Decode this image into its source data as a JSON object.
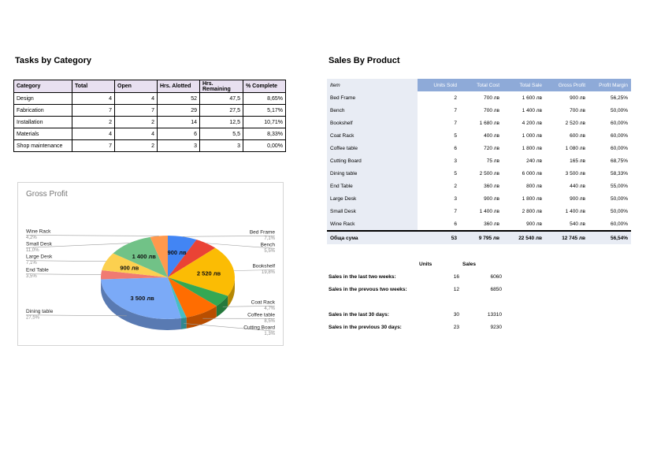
{
  "tasks": {
    "title": "Tasks by Category",
    "headers": [
      "Category",
      "Total",
      "Open",
      "Hrs. Alotted",
      "Hrs. Remaining",
      "% Complete"
    ],
    "rows": [
      [
        "Design",
        "4",
        "4",
        "52",
        "47,5",
        "8,65%"
      ],
      [
        "Fabrication",
        "7",
        "7",
        "29",
        "27,5",
        "5,17%"
      ],
      [
        "Installation",
        "2",
        "2",
        "14",
        "12,5",
        "10,71%"
      ],
      [
        "Materials",
        "4",
        "4",
        "6",
        "5,5",
        "8,33%"
      ],
      [
        "Shop maintenance",
        "7",
        "2",
        "3",
        "3",
        "0,00%"
      ]
    ]
  },
  "chart_data": {
    "type": "pie",
    "title": "Gross Profit",
    "slices": [
      {
        "name": "Bed Frame",
        "value": 900,
        "label": "900 лв",
        "percent": "7,1%",
        "color": "#4285f4"
      },
      {
        "name": "Bench",
        "value": 700,
        "label": "",
        "percent": "5,5%",
        "color": "#ea4335"
      },
      {
        "name": "Bookshelf",
        "value": 2520,
        "label": "2 520 лв",
        "percent": "19,8%",
        "color": "#fbbc04"
      },
      {
        "name": "Coat Rack",
        "value": 600,
        "label": "",
        "percent": "4,7%",
        "color": "#34a853"
      },
      {
        "name": "Coffee table",
        "value": 1080,
        "label": "",
        "percent": "8,5%",
        "color": "#ff6d01"
      },
      {
        "name": "Cutting Board",
        "value": 165,
        "label": "",
        "percent": "1,3%",
        "color": "#46bdc6"
      },
      {
        "name": "Dining table",
        "value": 3500,
        "label": "3 500 лв",
        "percent": "27,5%",
        "color": "#7baaf7"
      },
      {
        "name": "End Table",
        "value": 440,
        "label": "",
        "percent": "3,5%",
        "color": "#f07b72"
      },
      {
        "name": "Large Desk",
        "value": 900,
        "label": "900 лв",
        "percent": "7,1%",
        "color": "#fcd04f"
      },
      {
        "name": "Small Desk",
        "value": 1400,
        "label": "1 400 лв",
        "percent": "11,0%",
        "color": "#71c287"
      },
      {
        "name": "Wine Rack",
        "value": 540,
        "label": "",
        "percent": "4,2%",
        "color": "#ff994d"
      }
    ]
  },
  "sales": {
    "title": "Sales By Product",
    "headers": [
      "Item",
      "Units Sold",
      "Total Cost",
      "Total Sale",
      "Gross Profit",
      "Profit Margin"
    ],
    "rows": [
      [
        "Bed Frame",
        "2",
        "700 лв",
        "1 600 лв",
        "900 лв",
        "56,25%"
      ],
      [
        "Bench",
        "7",
        "700 лв",
        "1 400 лв",
        "700 лв",
        "50,00%"
      ],
      [
        "Bookshelf",
        "7",
        "1 680 лв",
        "4 200 лв",
        "2 520 лв",
        "60,00%"
      ],
      [
        "Coat Rack",
        "5",
        "400 лв",
        "1 000 лв",
        "600 лв",
        "60,00%"
      ],
      [
        "Coffee table",
        "6",
        "720 лв",
        "1 800 лв",
        "1 080 лв",
        "60,00%"
      ],
      [
        "Cutting Board",
        "3",
        "75 лв",
        "240 лв",
        "165 лв",
        "68,75%"
      ],
      [
        "Dining table",
        "5",
        "2 500 лв",
        "6 000 лв",
        "3 500 лв",
        "58,33%"
      ],
      [
        "End Table",
        "2",
        "360 лв",
        "800 лв",
        "440 лв",
        "55,00%"
      ],
      [
        "Large Desk",
        "3",
        "900 лв",
        "1 800 лв",
        "900 лв",
        "50,00%"
      ],
      [
        "Small Desk",
        "7",
        "1 400 лв",
        "2 800 лв",
        "1 400 лв",
        "50,00%"
      ],
      [
        "Wine Rack",
        "6",
        "360 лв",
        "900 лв",
        "540 лв",
        "60,00%"
      ]
    ],
    "total": [
      "Обща сума",
      "53",
      "9 795 лв",
      "22 540 лв",
      "12 745 лв",
      "56,54%"
    ]
  },
  "summary": {
    "units_header": "Units",
    "sales_header": "Sales",
    "rows": [
      {
        "label": "Sales in the last two weeks:",
        "units": "16",
        "sales": "6060"
      },
      {
        "label": "Sales in the prevous two weeks:",
        "units": "12",
        "sales": "6850"
      },
      {
        "label": "Sales in the last 30 days:",
        "units": "30",
        "sales": "13310"
      },
      {
        "label": "Sales in the previous 30 days:",
        "units": "23",
        "sales": "9230"
      }
    ]
  }
}
